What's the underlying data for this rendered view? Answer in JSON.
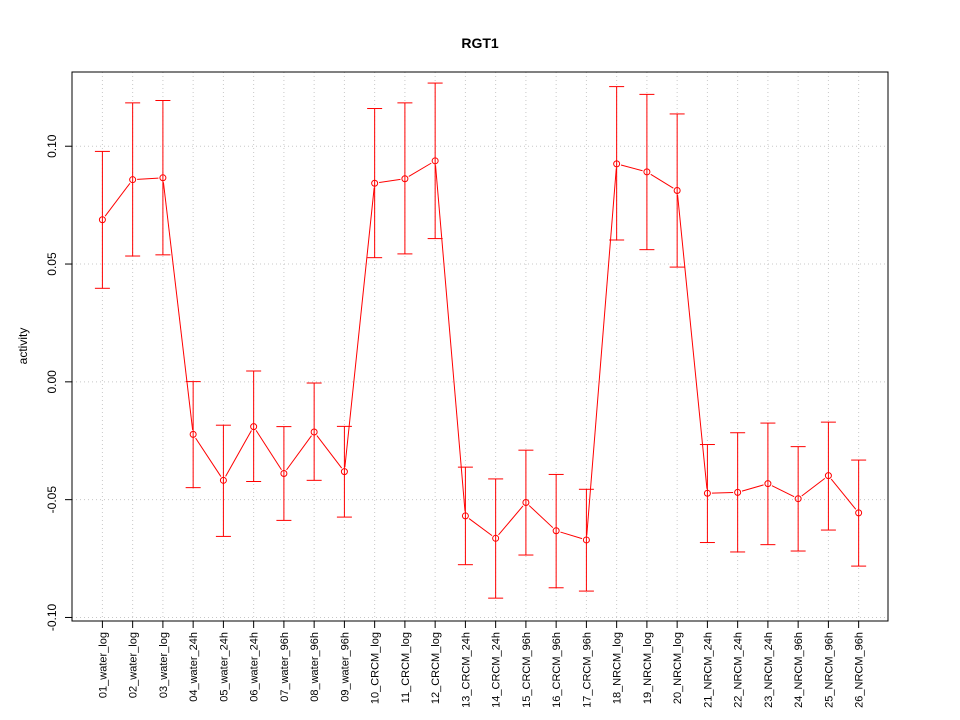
{
  "chart_data": {
    "type": "line",
    "title": "RGT1",
    "xlabel": "",
    "ylabel": "activity",
    "ylim": [
      -0.1,
      0.13
    ],
    "yticks": [
      -0.1,
      -0.05,
      0.0,
      0.05,
      0.1
    ],
    "ytick_labels": [
      "-0.10",
      "-0.05",
      "0.00",
      "0.05",
      "0.10"
    ],
    "grid": true,
    "grid_style": "dotted",
    "error_bars": true,
    "colors": {
      "series": "#ff0000",
      "grid": "#c8c8c8",
      "frame": "#000000"
    },
    "categories": [
      "01_water_log",
      "02_water_log",
      "03_water_log",
      "04_water_24h",
      "05_water_24h",
      "06_water_24h",
      "07_water_96h",
      "08_water_96h",
      "09_water_96h",
      "10_CRCM_log",
      "11_CRCM_log",
      "12_CRCM_log",
      "13_CRCM_24h",
      "14_CRCM_24h",
      "15_CRCM_96h",
      "16_CRCM_96h",
      "17_CRCM_96h",
      "18_NRCM_log",
      "19_NRCM_log",
      "20_NRCM_log",
      "21_NRCM_24h",
      "22_NRCM_24h",
      "23_NRCM_24h",
      "24_NRCM_96h",
      "25_NRCM_96h",
      "26_NRCM_96h"
    ],
    "series": [
      {
        "values": [
          0.0688,
          0.0858,
          0.0866,
          -0.0223,
          -0.0418,
          -0.019,
          -0.0389,
          -0.0213,
          -0.0381,
          0.0843,
          0.0862,
          0.0938,
          -0.0569,
          -0.0664,
          -0.0512,
          -0.0632,
          -0.0671,
          0.0925,
          0.0891,
          0.0812,
          -0.0473,
          -0.0469,
          -0.0432,
          -0.0496,
          -0.0398,
          -0.0556
        ],
        "lower": [
          0.0397,
          0.0534,
          0.0539,
          -0.0449,
          -0.0656,
          -0.0423,
          -0.0588,
          -0.0418,
          -0.0574,
          0.0527,
          0.0543,
          0.0608,
          -0.0776,
          -0.0918,
          -0.0735,
          -0.0874,
          -0.0888,
          0.0602,
          0.0561,
          0.0487,
          -0.0682,
          -0.0722,
          -0.0691,
          -0.0718,
          -0.0629,
          -0.0782
        ],
        "upper": [
          0.0978,
          0.1184,
          0.1194,
          0.0001,
          -0.0184,
          0.0046,
          -0.019,
          -0.0005,
          -0.0189,
          0.116,
          0.1184,
          0.1268,
          -0.0362,
          -0.0412,
          -0.029,
          -0.0393,
          -0.0456,
          0.1253,
          0.122,
          0.1137,
          -0.0266,
          -0.0216,
          -0.0175,
          -0.0275,
          -0.0171,
          -0.0332
        ]
      }
    ]
  }
}
